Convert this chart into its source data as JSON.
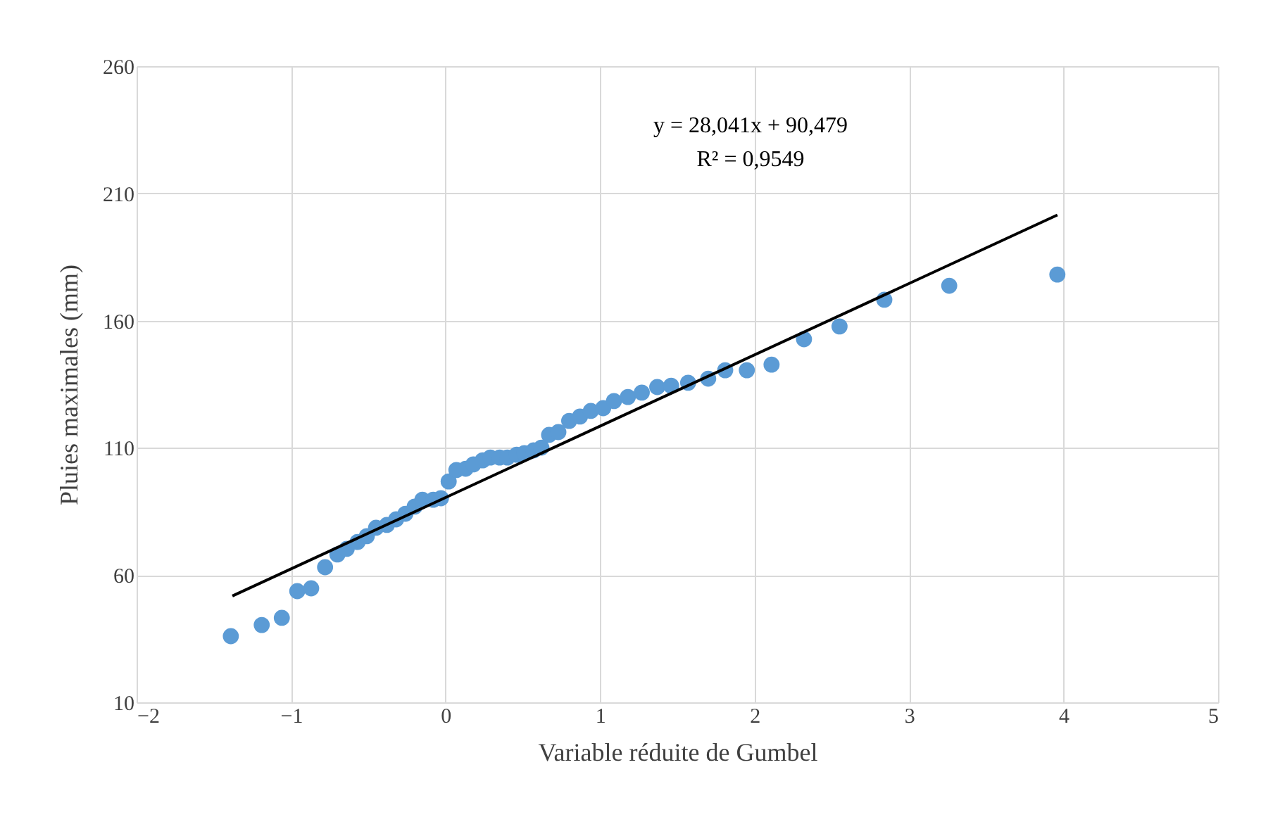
{
  "chart_data": {
    "type": "scatter",
    "xlabel": "Variable réduite de Gumbel",
    "ylabel": "Pluies maximales (mm)",
    "xlim": [
      -2,
      5
    ],
    "xticks": [
      -2,
      -1,
      0,
      1,
      2,
      3,
      4,
      5
    ],
    "ylim": [
      10,
      260
    ],
    "yticks": [
      10,
      60,
      110,
      160,
      210,
      260
    ],
    "grid": true,
    "legend": false,
    "marker": "circle",
    "annotations": [
      "y = 28,041x + 90,479",
      "R² = 0,9549"
    ],
    "series": [
      {
        "color": "#5b9bd5",
        "x": [
          -1.39,
          -1.19,
          -1.06,
          -0.96,
          -0.87,
          -0.78,
          -0.7,
          -0.64,
          -0.57,
          -0.51,
          -0.45,
          -0.38,
          -0.32,
          -0.26,
          -0.2,
          -0.15,
          -0.08,
          -0.03,
          0.02,
          0.07,
          0.13,
          0.18,
          0.24,
          0.29,
          0.35,
          0.4,
          0.46,
          0.51,
          0.57,
          0.62,
          0.67,
          0.73,
          0.8,
          0.87,
          0.94,
          1.02,
          1.09,
          1.18,
          1.27,
          1.37,
          1.46,
          1.57,
          1.7,
          1.81,
          1.95,
          2.11,
          2.32,
          2.55,
          2.84,
          3.26,
          3.96
        ],
        "values": [
          36,
          40.4,
          43.2,
          53.7,
          54.8,
          63.1,
          68.1,
          70.3,
          73,
          75.3,
          78.6,
          79.7,
          81.9,
          84.1,
          86.9,
          89.6,
          89.6,
          90.2,
          96.8,
          101.3,
          101.8,
          103.5,
          105.1,
          106.2,
          106.2,
          106.2,
          107.3,
          107.9,
          109,
          110.1,
          115.1,
          116.2,
          120.6,
          122.3,
          124.5,
          125.6,
          128.4,
          130,
          131.7,
          133.9,
          134.4,
          135.6,
          137.2,
          140.5,
          140.5,
          142.7,
          152.7,
          157.7,
          168.2,
          173.7,
          178.1
        ]
      },
      {
        "type": "line",
        "color": "#000000",
        "line_style": "solid",
        "marker": "none",
        "x": [
          -1.38,
          3.96
        ],
        "values": [
          51.8,
          201.5
        ]
      }
    ]
  }
}
